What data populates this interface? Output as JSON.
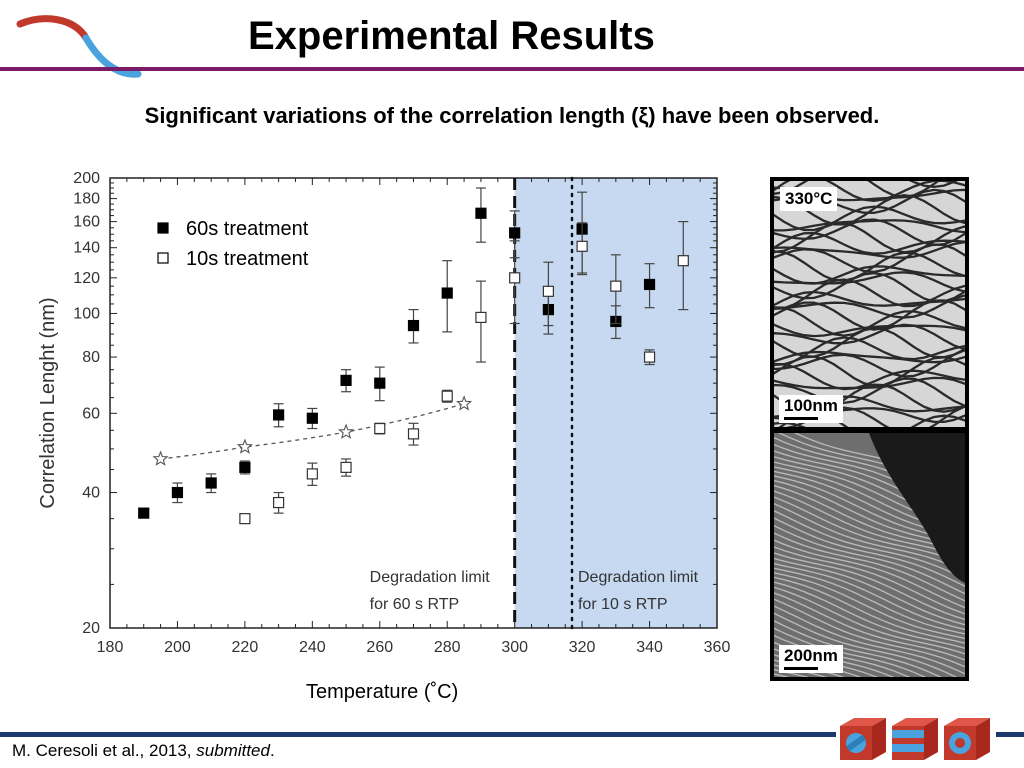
{
  "header": {
    "title": "Experimental Results",
    "subtitle": "Significant variations of the correlation length (ξ) have been observed."
  },
  "chart_data": {
    "type": "scatter",
    "xlabel": "Temperature (˚C)",
    "ylabel": "Correlation Lenght (nm)",
    "xlim": [
      180,
      360
    ],
    "ylim": [
      20,
      200
    ],
    "yscale": "log",
    "xticks": [
      180,
      200,
      220,
      240,
      260,
      280,
      300,
      320,
      340,
      360
    ],
    "yticks": [
      20,
      40,
      60,
      80,
      100,
      120,
      140,
      160,
      180,
      200
    ],
    "legend_position": "top-left",
    "series": [
      {
        "name": "60s treatment",
        "marker": "filled-square",
        "x": [
          190,
          200,
          210,
          220,
          230,
          240,
          250,
          260,
          270,
          280,
          290,
          300,
          310,
          320,
          330,
          340
        ],
        "y": [
          36,
          40,
          42,
          45.5,
          59.5,
          58.5,
          71,
          70,
          94,
          111,
          167,
          151,
          102,
          154,
          96,
          116
        ],
        "err": [
          0,
          2,
          2,
          1.5,
          3.5,
          3,
          4,
          6,
          8,
          20,
          23,
          18,
          12,
          32,
          8,
          13
        ]
      },
      {
        "name": "10s treatment",
        "marker": "open-square",
        "x": [
          220,
          230,
          240,
          250,
          260,
          270,
          280,
          290,
          300,
          310,
          320,
          330,
          340,
          350
        ],
        "y": [
          35,
          38,
          44,
          45.5,
          55.5,
          54,
          65.5,
          98,
          120,
          112,
          141,
          115,
          80,
          131
        ],
        "err": [
          0,
          2,
          2.5,
          2,
          1.5,
          3,
          2,
          20,
          25,
          18,
          18,
          20,
          3,
          29
        ]
      },
      {
        "name": "",
        "marker": "star",
        "line": "dashed-fit",
        "x": [
          195,
          220,
          250,
          285
        ],
        "y": [
          47.5,
          50.5,
          54.5,
          63
        ]
      }
    ],
    "regions": [
      {
        "xmin": 300,
        "xmax": 360,
        "color": "#c6d9f1"
      }
    ],
    "vlines": [
      {
        "x": 300,
        "style": "dashed",
        "label": [
          "Degradation limit",
          "for 60 s RTP"
        ]
      },
      {
        "x": 317,
        "style": "dotted",
        "label": [
          "Degradation limit",
          "for 10 s RTP"
        ]
      }
    ]
  },
  "images": {
    "top_temp": "330°C",
    "top_scale": "100nm",
    "bottom_scale": "200nm"
  },
  "footer": {
    "citation_main": "M. Ceresoli et al., 2013, ",
    "citation_italic": "submitted",
    "citation_end": "."
  },
  "colors": {
    "accent": "#7b1a67",
    "footer_bar": "#1c3a6e",
    "region": "#c6d9f1",
    "logo_red": "#c0392b",
    "logo_blue": "#4aa3df"
  }
}
